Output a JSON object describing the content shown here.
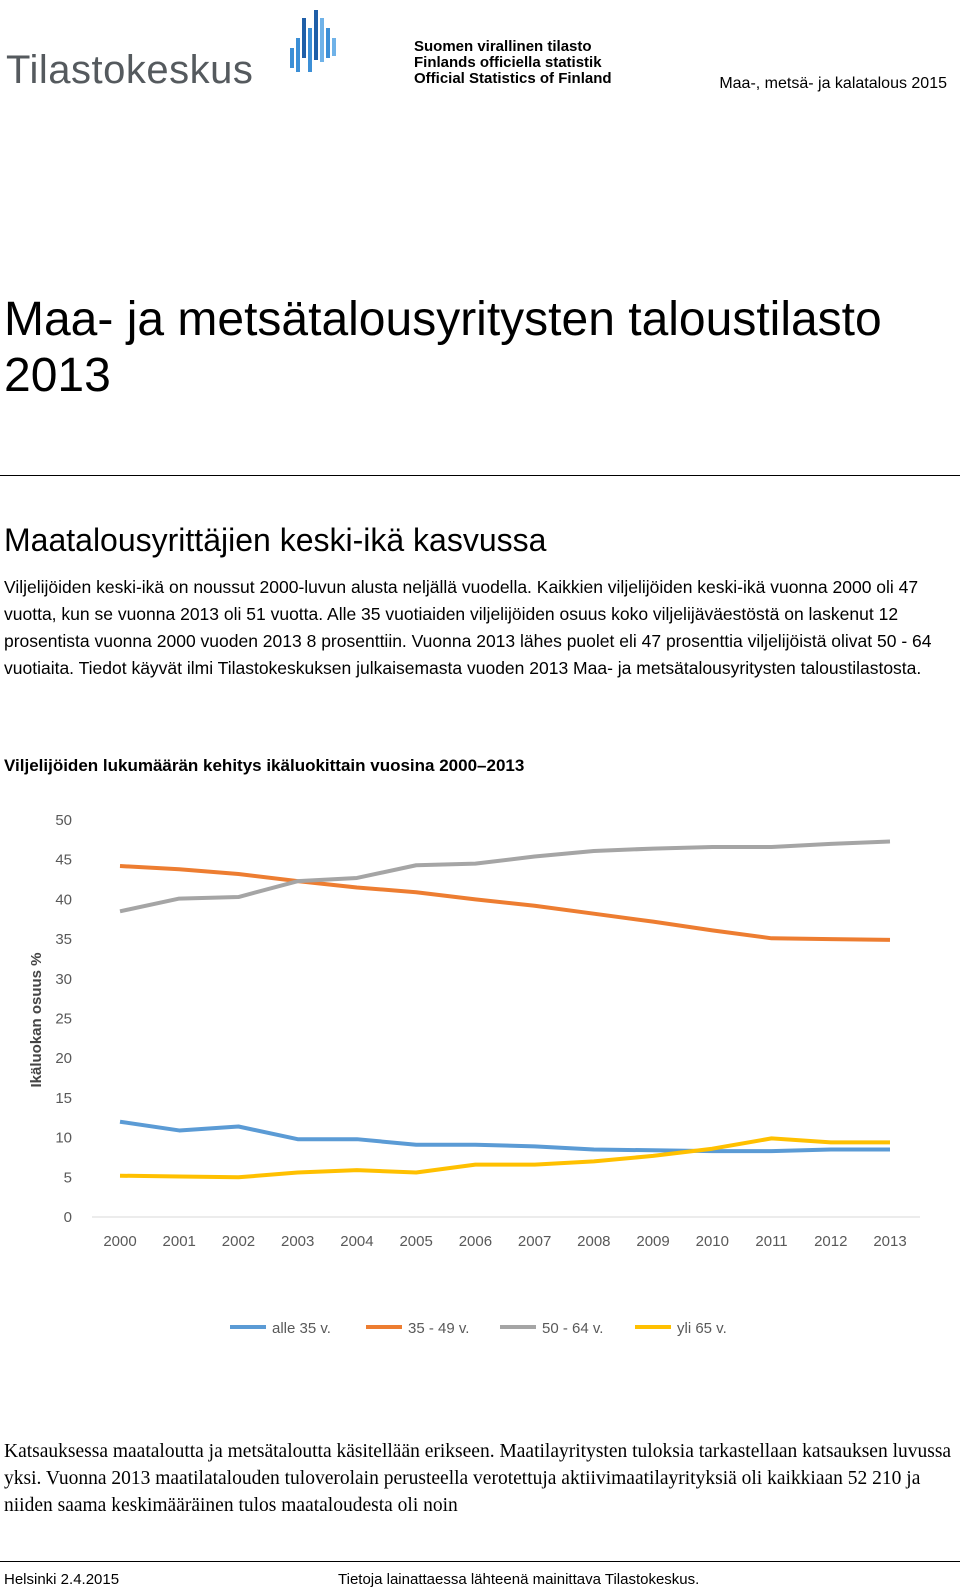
{
  "header": {
    "logo_text": "Tilastokeskus",
    "official_lines": [
      "Suomen virallinen tilasto",
      "Finlands officiella statistik",
      "Official Statistics of Finland"
    ],
    "publication_series": "Maa-, metsä- ja kalatalous 2015"
  },
  "title": {
    "main": "Maa- ja metsätalousyritysten taloustilasto 2013"
  },
  "section": {
    "heading": "Maatalousyrittäjien keski-ikä kasvussa",
    "lead": "Viljelijöiden keski-ikä on noussut 2000-luvun alusta neljällä vuodella. Kaikkien viljelijöiden keski-ikä vuonna 2000 oli 47 vuotta, kun se vuonna 2013 oli 51 vuotta. Alle 35 vuotiaiden viljelijöiden osuus koko viljelijäväestöstä on laskenut 12 prosentista vuonna 2000 vuoden 2013 8 prosenttiin. Vuonna 2013 lähes puolet eli 47 prosenttia viljelijöistä olivat 50 - 64 vuotiaita. Tiedot käyvät ilmi Tilastokeskuksen julkaisemasta vuoden 2013 Maa- ja metsätalousyritysten taloustilastosta.",
    "figure_title": "Viljelijöiden lukumäärän kehitys ikäluokittain vuosina 2000–2013",
    "body": "Katsauksessa maataloutta ja metsätaloutta käsitellään erikseen. Maatilayritysten tuloksia tarkastellaan katsauksen luvussa yksi. Vuonna 2013 maatilatalouden tuloverolain perusteella verotettuja aktiivimaatilayrityksiä oli kaikkiaan 52 210 ja niiden saama keskimääräinen tulos maataloudesta oli noin"
  },
  "footer": {
    "place_date": "Helsinki 2.4.2015",
    "citation": "Tietoja lainattaessa lähteenä mainittava Tilastokeskus."
  },
  "chart_data": {
    "type": "line",
    "title": "Viljelijöiden lukumäärän kehitys ikäluokittain vuosina 2000–2013",
    "xlabel": "",
    "ylabel": "Ikäluokan osuus %",
    "ylim": [
      0,
      50
    ],
    "yticks": [
      0,
      5,
      10,
      15,
      20,
      25,
      30,
      35,
      40,
      45,
      50
    ],
    "grid": false,
    "legend_position": "bottom",
    "categories": [
      "2000",
      "2001",
      "2002",
      "2003",
      "2004",
      "2005",
      "2006",
      "2007",
      "2008",
      "2009",
      "2010",
      "2011",
      "2012",
      "2013"
    ],
    "series": [
      {
        "name": "alle 35 v.",
        "color": "#5b9bd5",
        "values": [
          12.0,
          10.9,
          11.4,
          9.8,
          9.8,
          9.1,
          9.1,
          8.9,
          8.5,
          8.4,
          8.3,
          8.3,
          8.5,
          8.5
        ]
      },
      {
        "name": "35 - 49 v.",
        "color": "#ed7d31",
        "values": [
          44.2,
          43.8,
          43.2,
          42.3,
          41.5,
          40.9,
          40.0,
          39.2,
          38.2,
          37.2,
          36.1,
          35.1,
          35.0,
          34.9
        ]
      },
      {
        "name": "50 - 64 v.",
        "color": "#a5a5a5",
        "values": [
          38.5,
          40.1,
          40.3,
          42.3,
          42.7,
          44.3,
          44.5,
          45.4,
          46.1,
          46.4,
          46.6,
          46.6,
          47.0,
          47.3
        ]
      },
      {
        "name": "yli 65 v.",
        "color": "#ffc000",
        "values": [
          5.2,
          5.1,
          5.0,
          5.6,
          5.9,
          5.6,
          6.6,
          6.6,
          7.0,
          7.7,
          8.6,
          9.9,
          9.4,
          9.4
        ]
      }
    ]
  }
}
